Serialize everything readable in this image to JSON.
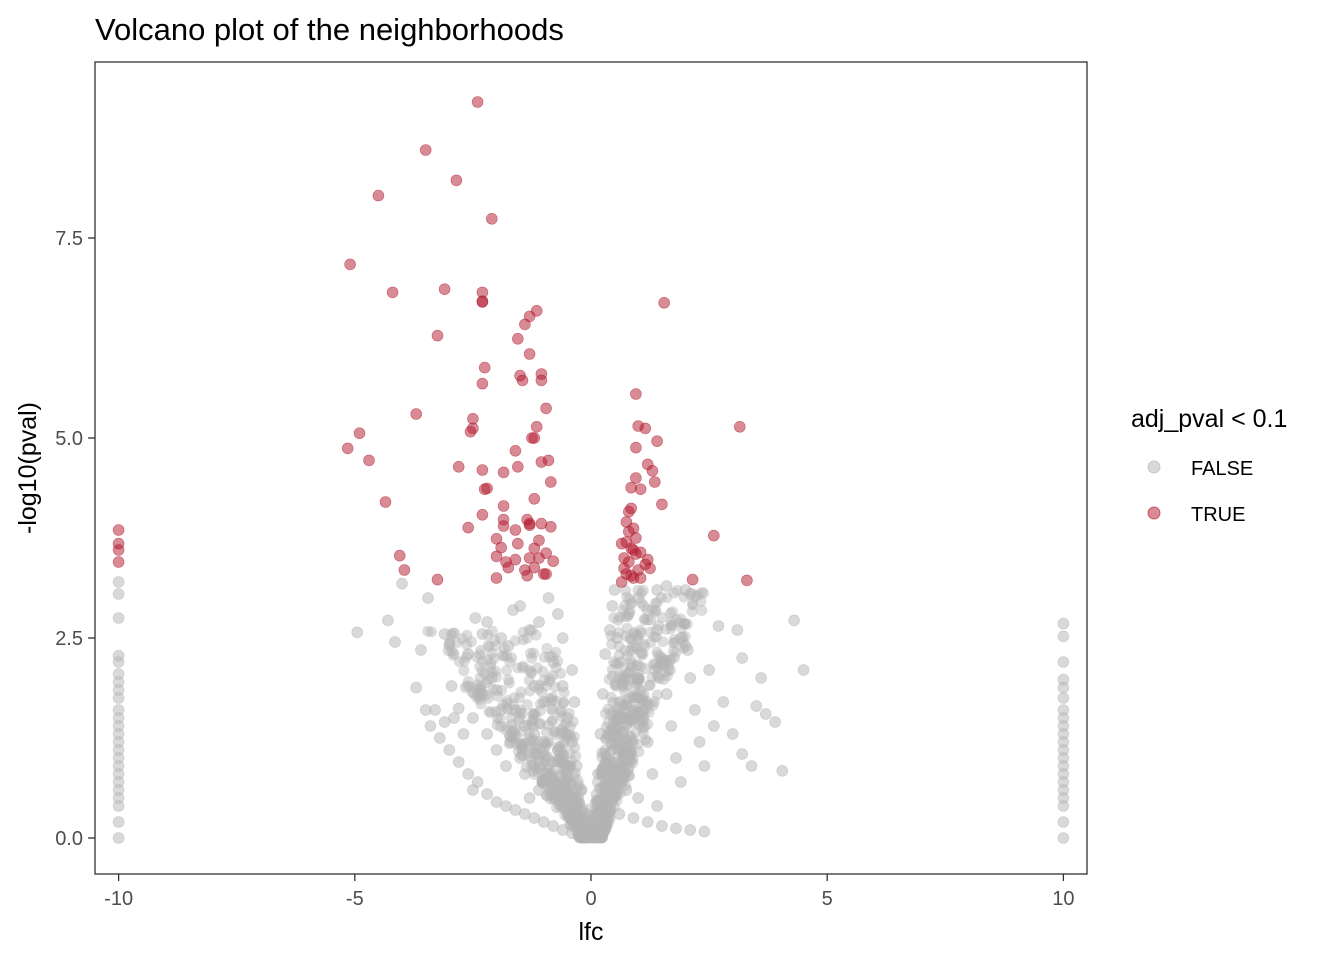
{
  "chart_data": {
    "type": "scatter",
    "title": "Volcano plot of the neighborhoods",
    "xlabel": "lfc",
    "ylabel": "-log10(pval)",
    "xlim": [
      -10.5,
      10.5
    ],
    "ylim": [
      -0.45,
      9.7
    ],
    "x_ticks": [
      -10,
      -5,
      0,
      5,
      10
    ],
    "x_tick_labels": [
      "-10",
      "-5",
      "0",
      "5",
      "10"
    ],
    "y_ticks": [
      0.0,
      2.5,
      5.0,
      7.5
    ],
    "y_tick_labels": [
      "0.0",
      "2.5",
      "5.0",
      "7.5"
    ],
    "grid": false,
    "legend": {
      "title": "adj_pval < 0.1",
      "placement": "right",
      "entries": [
        {
          "label": "FALSE",
          "color": "#b3b3b3"
        },
        {
          "label": "TRUE",
          "color": "#b2182b"
        }
      ]
    },
    "series": [
      {
        "name": "FALSE",
        "color": "#b3b3b3",
        "opacity": 0.5,
        "points": [
          [
            -10,
            3.2
          ],
          [
            -10,
            3.05
          ],
          [
            -10,
            2.75
          ],
          [
            -10,
            2.28
          ],
          [
            -10,
            2.2
          ],
          [
            -10,
            2.05
          ],
          [
            -10,
            1.95
          ],
          [
            -10,
            1.85
          ],
          [
            -10,
            1.75
          ],
          [
            -10,
            1.6
          ],
          [
            -10,
            1.5
          ],
          [
            -10,
            1.4
          ],
          [
            -10,
            1.3
          ],
          [
            -10,
            1.2
          ],
          [
            -10,
            1.1
          ],
          [
            -10,
            1.0
          ],
          [
            -10,
            0.9
          ],
          [
            -10,
            0.8
          ],
          [
            -10,
            0.7
          ],
          [
            -10,
            0.6
          ],
          [
            -10,
            0.5
          ],
          [
            -10,
            0.4
          ],
          [
            -10,
            0.2
          ],
          [
            -10,
            0.0
          ],
          [
            10,
            2.68
          ],
          [
            10,
            2.52
          ],
          [
            10,
            2.2
          ],
          [
            10,
            1.98
          ],
          [
            10,
            1.88
          ],
          [
            10,
            1.75
          ],
          [
            10,
            1.6
          ],
          [
            10,
            1.5
          ],
          [
            10,
            1.4
          ],
          [
            10,
            1.3
          ],
          [
            10,
            1.2
          ],
          [
            10,
            1.1
          ],
          [
            10,
            1.0
          ],
          [
            10,
            0.9
          ],
          [
            10,
            0.8
          ],
          [
            10,
            0.7
          ],
          [
            10,
            0.6
          ],
          [
            10,
            0.5
          ],
          [
            10,
            0.4
          ],
          [
            10,
            0.2
          ],
          [
            10,
            0.0
          ],
          [
            -4.95,
            2.57
          ],
          [
            -4.3,
            2.72
          ],
          [
            -4.15,
            2.45
          ],
          [
            -4.0,
            3.18
          ],
          [
            -3.6,
            2.35
          ],
          [
            -3.45,
            3.0
          ],
          [
            -3.7,
            1.88
          ],
          [
            -3.3,
            1.6
          ],
          [
            -3.1,
            2.55
          ],
          [
            -3.0,
            2.42
          ],
          [
            -2.95,
            1.9
          ],
          [
            -2.8,
            1.62
          ],
          [
            -2.6,
            2.3
          ],
          [
            -2.45,
            2.75
          ],
          [
            -2.3,
            2.55
          ],
          [
            -2.2,
            2.7
          ],
          [
            -2.0,
            1.85
          ],
          [
            -1.9,
            2.5
          ],
          [
            -1.75,
            2.4
          ],
          [
            -1.65,
            2.85
          ],
          [
            -1.5,
            2.9
          ],
          [
            -1.3,
            2.6
          ],
          [
            -1.1,
            2.7
          ],
          [
            -0.9,
            3.0
          ],
          [
            -0.7,
            2.8
          ],
          [
            -3.5,
            1.6
          ],
          [
            -3.4,
            1.4
          ],
          [
            -3.2,
            1.25
          ],
          [
            -3.0,
            1.1
          ],
          [
            -2.8,
            0.95
          ],
          [
            -2.6,
            0.8
          ],
          [
            -2.5,
            0.6
          ],
          [
            -2.4,
            0.7
          ],
          [
            -2.2,
            0.55
          ],
          [
            -2.0,
            0.45
          ],
          [
            -1.8,
            0.4
          ],
          [
            -1.6,
            0.35
          ],
          [
            -1.4,
            0.3
          ],
          [
            -1.2,
            0.25
          ],
          [
            -1.0,
            0.2
          ],
          [
            -0.8,
            0.15
          ],
          [
            -0.6,
            0.1
          ],
          [
            -0.4,
            0.06
          ],
          [
            -0.2,
            0.03
          ],
          [
            -2.5,
            1.5
          ],
          [
            -2.2,
            1.3
          ],
          [
            -2.0,
            1.1
          ],
          [
            -1.8,
            0.9
          ],
          [
            -1.6,
            1.6
          ],
          [
            -1.4,
            1.4
          ],
          [
            -1.2,
            1.9
          ],
          [
            -1.0,
            1.7
          ],
          [
            -0.8,
            2.2
          ],
          [
            -0.6,
            1.9
          ],
          [
            -0.5,
            1.5
          ],
          [
            -0.4,
            1.2
          ],
          [
            -0.3,
            0.9
          ],
          [
            -0.2,
            0.6
          ],
          [
            -0.1,
            0.3
          ],
          [
            -0.7,
            1.1
          ],
          [
            -0.9,
            0.8
          ],
          [
            -1.1,
            0.6
          ],
          [
            -1.3,
            0.5
          ],
          [
            -1.5,
            1.0
          ],
          [
            -1.7,
            1.2
          ],
          [
            -1.9,
            1.6
          ],
          [
            -2.1,
            2.0
          ],
          [
            -2.3,
            1.8
          ],
          [
            -2.7,
            1.3
          ],
          [
            -2.9,
            1.5
          ],
          [
            -3.1,
            1.45
          ],
          [
            -1.0,
            1.2
          ],
          [
            -0.8,
            0.5
          ],
          [
            -0.5,
            0.8
          ],
          [
            -0.3,
            0.4
          ],
          [
            -1.4,
            0.8
          ],
          [
            -1.2,
            1.3
          ],
          [
            -0.6,
            2.5
          ],
          [
            -0.4,
            2.1
          ],
          [
            -0.35,
            1.7
          ],
          [
            0.1,
            0.3
          ],
          [
            0.15,
            0.8
          ],
          [
            0.2,
            1.3
          ],
          [
            0.25,
            1.8
          ],
          [
            0.3,
            2.3
          ],
          [
            0.4,
            2.6
          ],
          [
            0.45,
            2.9
          ],
          [
            0.5,
            3.1
          ],
          [
            0.55,
            2.5
          ],
          [
            0.6,
            2.0
          ],
          [
            0.65,
            1.5
          ],
          [
            0.7,
            1.0
          ],
          [
            0.75,
            0.6
          ],
          [
            0.8,
            2.8
          ],
          [
            0.9,
            2.4
          ],
          [
            1.0,
            2.0
          ],
          [
            1.1,
            1.6
          ],
          [
            1.2,
            1.2
          ],
          [
            1.3,
            0.8
          ],
          [
            1.4,
            2.6
          ],
          [
            1.5,
            2.2
          ],
          [
            1.6,
            1.8
          ],
          [
            1.7,
            1.4
          ],
          [
            1.8,
            1.0
          ],
          [
            1.9,
            0.7
          ],
          [
            2.0,
            2.4
          ],
          [
            2.1,
            2.0
          ],
          [
            2.2,
            1.6
          ],
          [
            2.3,
            1.2
          ],
          [
            2.4,
            0.9
          ],
          [
            2.6,
            1.4
          ],
          [
            2.8,
            1.7
          ],
          [
            3.0,
            1.3
          ],
          [
            3.2,
            1.05
          ],
          [
            3.4,
            0.9
          ],
          [
            0.35,
            0.5
          ],
          [
            0.6,
            0.3
          ],
          [
            0.9,
            0.25
          ],
          [
            1.2,
            0.2
          ],
          [
            1.5,
            0.15
          ],
          [
            1.8,
            0.12
          ],
          [
            2.1,
            0.1
          ],
          [
            2.4,
            0.08
          ],
          [
            1.0,
            0.5
          ],
          [
            1.4,
            0.4
          ],
          [
            0.3,
            0.1
          ],
          [
            1.4,
            3.1
          ],
          [
            1.6,
            3.15
          ],
          [
            2.0,
            3.1
          ],
          [
            2.1,
            3.05
          ],
          [
            2.5,
            2.1
          ],
          [
            2.7,
            2.65
          ],
          [
            3.1,
            2.6
          ],
          [
            3.2,
            2.25
          ],
          [
            3.5,
            1.65
          ],
          [
            3.7,
            1.55
          ],
          [
            3.9,
            1.45
          ],
          [
            4.05,
            0.84
          ],
          [
            4.3,
            2.72
          ],
          [
            4.5,
            2.1
          ],
          [
            3.6,
            2.0
          ],
          [
            1.9,
            2.5
          ],
          [
            2.05,
            2.35
          ],
          [
            1.2,
            2.85
          ],
          [
            1.0,
            3.0
          ]
        ]
      },
      {
        "name": "TRUE",
        "color": "#b2182b",
        "opacity": 0.5,
        "points": [
          [
            -10,
            3.85
          ],
          [
            -10,
            3.68
          ],
          [
            -10,
            3.6
          ],
          [
            -10,
            3.45
          ],
          [
            -2.4,
            9.2
          ],
          [
            -3.5,
            8.6
          ],
          [
            -2.85,
            8.22
          ],
          [
            -4.5,
            8.03
          ],
          [
            -2.1,
            7.74
          ],
          [
            -5.1,
            7.17
          ],
          [
            -3.1,
            6.86
          ],
          [
            -4.2,
            6.82
          ],
          [
            -2.3,
            6.82
          ],
          [
            -2.3,
            6.71
          ],
          [
            -2.3,
            6.7
          ],
          [
            -1.15,
            6.59
          ],
          [
            -1.3,
            6.52
          ],
          [
            -1.4,
            6.42
          ],
          [
            -1.55,
            6.24
          ],
          [
            -3.25,
            6.28
          ],
          [
            -1.3,
            6.05
          ],
          [
            -2.25,
            5.88
          ],
          [
            -1.05,
            5.8
          ],
          [
            -1.05,
            5.72
          ],
          [
            -1.5,
            5.78
          ],
          [
            -1.45,
            5.72
          ],
          [
            -2.3,
            5.68
          ],
          [
            -3.7,
            5.3
          ],
          [
            -0.95,
            5.37
          ],
          [
            -2.5,
            5.24
          ],
          [
            -2.5,
            5.12
          ],
          [
            -2.55,
            5.08
          ],
          [
            -1.15,
            5.14
          ],
          [
            -1.25,
            5.0
          ],
          [
            -1.2,
            5.0
          ],
          [
            -4.9,
            5.06
          ],
          [
            -5.15,
            4.87
          ],
          [
            -1.6,
            4.84
          ],
          [
            -0.9,
            4.72
          ],
          [
            -1.05,
            4.7
          ],
          [
            -4.7,
            4.72
          ],
          [
            -1.55,
            4.64
          ],
          [
            -2.8,
            4.64
          ],
          [
            -2.3,
            4.6
          ],
          [
            -1.85,
            4.57
          ],
          [
            -0.85,
            4.45
          ],
          [
            -2.2,
            4.37
          ],
          [
            -2.25,
            4.36
          ],
          [
            -1.2,
            4.24
          ],
          [
            -4.35,
            4.2
          ],
          [
            -1.85,
            4.15
          ],
          [
            -2.3,
            4.04
          ],
          [
            -1.35,
            3.98
          ],
          [
            -1.3,
            3.93
          ],
          [
            -1.85,
            3.98
          ],
          [
            -1.85,
            3.9
          ],
          [
            -1.3,
            3.91
          ],
          [
            -1.05,
            3.93
          ],
          [
            -0.85,
            3.89
          ],
          [
            -1.6,
            3.85
          ],
          [
            -2.6,
            3.88
          ],
          [
            -2.0,
            3.74
          ],
          [
            -1.1,
            3.72
          ],
          [
            -1.55,
            3.68
          ],
          [
            -1.2,
            3.62
          ],
          [
            -1.9,
            3.63
          ],
          [
            -0.95,
            3.56
          ],
          [
            -2.0,
            3.52
          ],
          [
            -1.6,
            3.48
          ],
          [
            -1.8,
            3.45
          ],
          [
            -1.3,
            3.5
          ],
          [
            -1.1,
            3.5
          ],
          [
            -0.8,
            3.46
          ],
          [
            -1.75,
            3.38
          ],
          [
            -1.4,
            3.35
          ],
          [
            -1.35,
            3.28
          ],
          [
            -1.0,
            3.3
          ],
          [
            -0.95,
            3.3
          ],
          [
            -2.0,
            3.25
          ],
          [
            -4.05,
            3.53
          ],
          [
            -3.95,
            3.35
          ],
          [
            -3.25,
            3.23
          ],
          [
            -1.2,
            3.38
          ],
          [
            0.95,
            5.55
          ],
          [
            1.0,
            5.15
          ],
          [
            1.15,
            5.12
          ],
          [
            1.4,
            4.96
          ],
          [
            3.15,
            5.14
          ],
          [
            0.95,
            4.88
          ],
          [
            1.2,
            4.67
          ],
          [
            1.3,
            4.59
          ],
          [
            1.35,
            4.45
          ],
          [
            0.95,
            4.5
          ],
          [
            0.85,
            4.38
          ],
          [
            1.05,
            4.36
          ],
          [
            0.8,
            4.08
          ],
          [
            0.85,
            4.12
          ],
          [
            1.5,
            4.17
          ],
          [
            0.75,
            3.95
          ],
          [
            0.9,
            3.87
          ],
          [
            0.8,
            3.83
          ],
          [
            0.95,
            3.75
          ],
          [
            0.65,
            3.68
          ],
          [
            0.75,
            3.7
          ],
          [
            0.85,
            3.62
          ],
          [
            0.9,
            3.6
          ],
          [
            0.95,
            3.55
          ],
          [
            1.05,
            3.57
          ],
          [
            0.7,
            3.5
          ],
          [
            0.8,
            3.45
          ],
          [
            1.2,
            3.48
          ],
          [
            1.15,
            3.42
          ],
          [
            1.25,
            3.37
          ],
          [
            1.0,
            3.35
          ],
          [
            0.7,
            3.37
          ],
          [
            0.75,
            3.3
          ],
          [
            0.85,
            3.28
          ],
          [
            0.9,
            3.25
          ],
          [
            0.65,
            3.2
          ],
          [
            1.05,
            3.25
          ],
          [
            2.6,
            3.78
          ],
          [
            2.15,
            3.23
          ],
          [
            3.3,
            3.22
          ],
          [
            1.55,
            6.69
          ]
        ]
      }
    ]
  }
}
